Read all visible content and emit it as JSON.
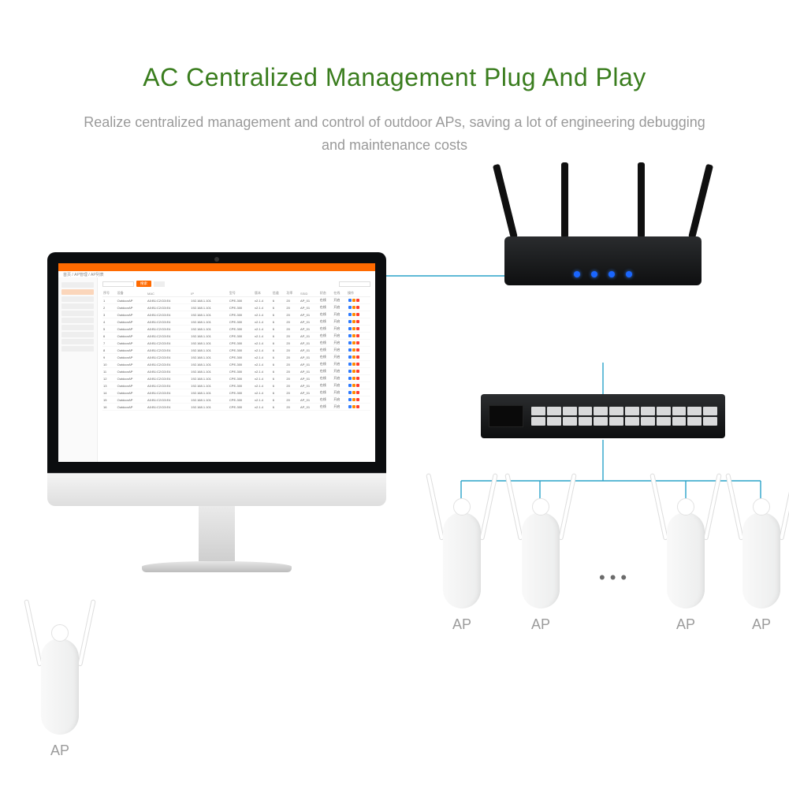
{
  "colors": {
    "title": "#3a7d1e",
    "subtitle": "#9a9a9a",
    "background": "#ffffff",
    "wire": "#2aa3c9",
    "ui_accent": "#ff6a00",
    "led": "#1a66ff",
    "ap_label": "#9b9b9b"
  },
  "header": {
    "title": "AC Centralized Management Plug And Play",
    "subtitle": "Realize centralized management and control of outdoor APs, saving a lot of engineering debugging and maintenance costs"
  },
  "diagram": {
    "type": "network-topology-infographic",
    "monitor": {
      "ui": {
        "topbar_color": "#ff6a00",
        "sidebar_items": 10,
        "toolbar": {
          "search_label": "搜索",
          "reset_label": "重置"
        },
        "table": {
          "columns": [
            "序号",
            "设备",
            "MAC",
            "IP",
            "型号",
            "版本",
            "信道",
            "功率",
            "SSID",
            "状态",
            "在线",
            "操作"
          ],
          "row_count": 16,
          "sample_row": [
            "1",
            "OutdoorAP",
            "A0:B1:C2:D3:E4",
            "192.168.1.101",
            "CPE-300",
            "v2.1.4",
            "6",
            "20",
            "AP_01",
            "在线",
            "开启",
            ""
          ],
          "action_colors": [
            "#2e7bff",
            "#ff8a00",
            "#ff3b30"
          ]
        }
      }
    },
    "router": {
      "antennas": 4,
      "leds": 4,
      "body_color": "#111214"
    },
    "switch": {
      "port_count": 24,
      "port_color": "#d9dadb",
      "body_color": "#111214"
    },
    "access_points": {
      "count_shown": 4,
      "ellipsis": true,
      "label": "AP",
      "body_color": "#f3f3f3"
    },
    "connections": [
      {
        "from": "monitor",
        "to": "router"
      },
      {
        "from": "router",
        "to": "switch"
      },
      {
        "from": "switch",
        "to": "ap[*]",
        "style": "orthogonal-fanout"
      }
    ]
  }
}
